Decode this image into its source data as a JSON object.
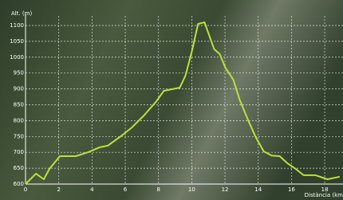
{
  "chart_data": {
    "type": "line",
    "y_label": "Alt. (m)",
    "x_label": "Distància (km",
    "x": [
      0,
      0.63,
      1.1,
      1.44,
      2.07,
      3.03,
      3.75,
      4.47,
      4.95,
      5.67,
      6.39,
      7.12,
      7.84,
      8.32,
      8.8,
      9.28,
      9.62,
      10.0,
      10.38,
      10.77,
      11.06,
      11.35,
      11.68,
      12.02,
      12.5,
      12.88,
      13.37,
      13.85,
      14.33,
      14.81,
      15.29,
      15.77,
      16.25,
      16.73,
      17.45,
      18.17,
      18.9
    ],
    "values": [
      600,
      633,
      615,
      648,
      688,
      688,
      700,
      716,
      721,
      748,
      778,
      816,
      859,
      894,
      899,
      904,
      942,
      1017,
      1105,
      1110,
      1067,
      1025,
      1010,
      967,
      929,
      866,
      804,
      748,
      703,
      690,
      688,
      665,
      648,
      628,
      628,
      615,
      623
    ],
    "color": "#b9e23c",
    "xlim": [
      0,
      19.1
    ],
    "ylim": [
      600,
      1110
    ],
    "xticks": [
      0,
      2,
      4,
      6,
      8,
      10,
      12,
      14,
      16,
      18
    ],
    "yticks": [
      600,
      650,
      700,
      750,
      800,
      850,
      900,
      950,
      1000,
      1050,
      1100
    ],
    "grid": true
  }
}
